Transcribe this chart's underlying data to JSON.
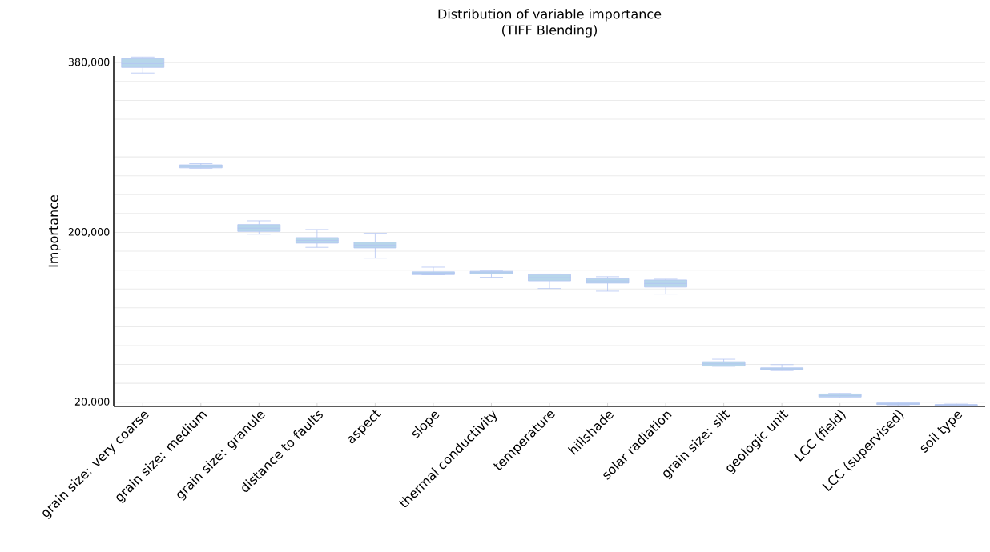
{
  "chart_data": {
    "type": "box",
    "title": "Distribution of variable importance",
    "subtitle": "(TIFF Blending)",
    "ylabel": "Importance",
    "categories": [
      "grain size: very coarse",
      "grain size: medium",
      "grain size: granule",
      "distance to faults",
      "aspect",
      "slope",
      "thermal conductivity",
      "temperature",
      "hillshade",
      "solar radiation",
      "grain size: silt",
      "geologic unit",
      "LCC (field)",
      "LCC (supervised)",
      "soil type"
    ],
    "color": "#b7d6ea",
    "boxes": [
      {
        "low": 369000,
        "q1": 374900,
        "median": 379000,
        "q3": 384200,
        "high": 385900
      },
      {
        "low": 268000,
        "q1": 268400,
        "median": 270000,
        "q3": 271600,
        "high": 272900
      },
      {
        "low": 198100,
        "q1": 201000,
        "median": 204500,
        "q3": 208300,
        "high": 212300
      },
      {
        "low": 184100,
        "q1": 188600,
        "median": 191500,
        "q3": 194500,
        "high": 203000
      },
      {
        "low": 172700,
        "q1": 183500,
        "median": 186500,
        "q3": 189700,
        "high": 199000
      },
      {
        "low": 155000,
        "q1": 155300,
        "median": 156700,
        "q3": 158100,
        "high": 163100
      },
      {
        "low": 152400,
        "q1": 155900,
        "median": 157300,
        "q3": 158700,
        "high": 159000
      },
      {
        "low": 140500,
        "q1": 148600,
        "median": 152000,
        "q3": 155300,
        "high": 155900
      },
      {
        "low": 137700,
        "q1": 146200,
        "median": 148600,
        "q3": 151000,
        "high": 153000
      },
      {
        "low": 134600,
        "q1": 142000,
        "median": 145800,
        "q3": 149600,
        "high": 150400
      },
      {
        "low": 58000,
        "q1": 58300,
        "median": 60600,
        "q3": 62900,
        "high": 65500
      },
      {
        "low": 53500,
        "q1": 54100,
        "median": 55200,
        "q3": 56400,
        "high": 59800
      },
      {
        "low": 24500,
        "q1": 25400,
        "median": 27000,
        "q3": 28700,
        "high": 29300
      },
      {
        "low": 17000,
        "q1": 17500,
        "median": 18300,
        "q3": 19200,
        "high": 20000
      },
      {
        "low": 16000,
        "q1": 16500,
        "median": 17000,
        "q3": 17500,
        "high": 18000
      }
    ],
    "ylim": [
      15500,
      387000
    ],
    "yticks": [
      {
        "value": 20000,
        "label": "20,000"
      },
      {
        "value": 40000,
        "label": null
      },
      {
        "value": 60000,
        "label": null
      },
      {
        "value": 80000,
        "label": null
      },
      {
        "value": 100000,
        "label": null
      },
      {
        "value": 120000,
        "label": null
      },
      {
        "value": 140000,
        "label": null
      },
      {
        "value": 160000,
        "label": null
      },
      {
        "value": 180000,
        "label": null
      },
      {
        "value": 200000,
        "label": "200,000"
      },
      {
        "value": 220000,
        "label": null
      },
      {
        "value": 240000,
        "label": null
      },
      {
        "value": 260000,
        "label": null
      },
      {
        "value": 280000,
        "label": null
      },
      {
        "value": 300000,
        "label": null
      },
      {
        "value": 320000,
        "label": null
      },
      {
        "value": 340000,
        "label": null
      },
      {
        "value": 360000,
        "label": null
      },
      {
        "value": 380000,
        "label": "380,000"
      }
    ],
    "grid": "y"
  }
}
